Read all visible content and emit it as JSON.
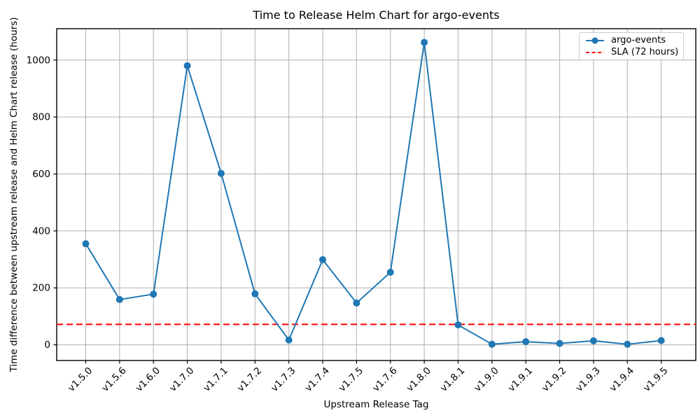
{
  "chart_data": {
    "type": "line",
    "title": "Time to Release Helm Chart for argo-events",
    "xlabel": "Upstream Release Tag",
    "ylabel": "Time difference between upstream release and Helm Chart release (hours)",
    "categories": [
      "v1.5.0",
      "v1.5.6",
      "v1.6.0",
      "v1.7.0",
      "v1.7.1",
      "v1.7.2",
      "v1.7.3",
      "v1.7.4",
      "v1.7.5",
      "v1.7.6",
      "v1.8.0",
      "v1.8.1",
      "v1.9.0",
      "v1.9.1",
      "v1.9.2",
      "v1.9.3",
      "v1.9.4",
      "v1.9.5"
    ],
    "series": [
      {
        "name": "argo-events",
        "values": [
          355,
          159,
          178,
          980,
          602,
          179,
          17,
          299,
          147,
          255,
          1062,
          70,
          2,
          11,
          5,
          14,
          2,
          15
        ],
        "color": "#1f77b4",
        "marker": "circle"
      }
    ],
    "sla": {
      "label": "SLA (72 hours)",
      "value": 72,
      "color": "#ff0000",
      "style": "dashed"
    },
    "yticks": [
      0,
      200,
      400,
      600,
      800,
      1000
    ],
    "ylim": [
      -55,
      1110
    ],
    "grid": true,
    "grid_color": "#b0b0b0",
    "axis_color": "#000000",
    "legend_position": "upper right"
  }
}
